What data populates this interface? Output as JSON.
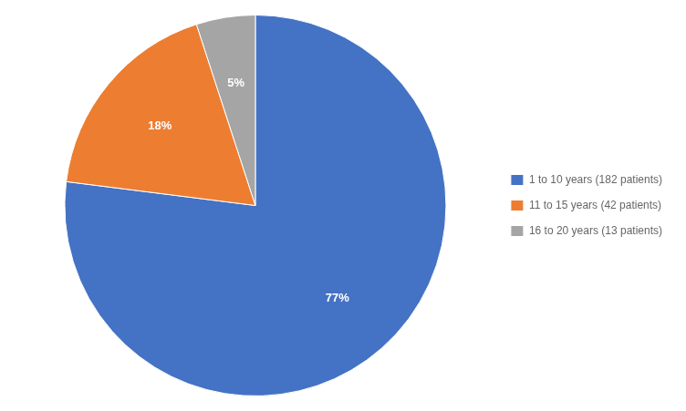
{
  "chart_data": {
    "type": "pie",
    "categories": [
      "1 to 10 years (182 patients)",
      "11 to 15 years (42 patients)",
      "16 to 20 years (13 patients)"
    ],
    "values": [
      77,
      18,
      5
    ],
    "value_labels": [
      "77%",
      "18%",
      "5%"
    ],
    "colors": [
      "#4472C4",
      "#ED7D31",
      "#A5A5A5"
    ],
    "data_labels": true,
    "legend": "right"
  }
}
